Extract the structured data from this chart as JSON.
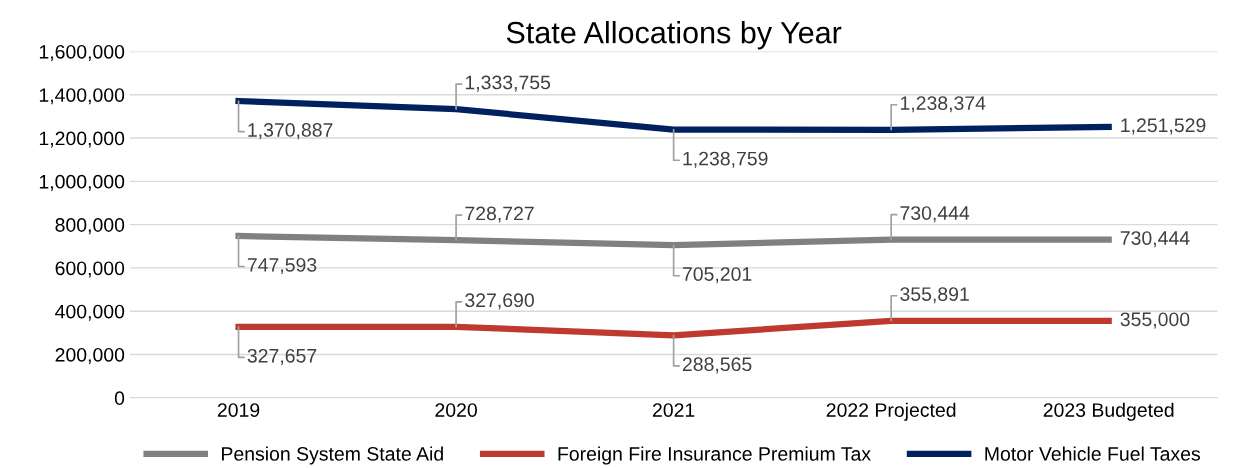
{
  "chart_data": {
    "type": "line",
    "title": "State Allocations by Year",
    "categories": [
      "2019",
      "2020",
      "2021",
      "2022 Projected",
      "2023 Budgeted"
    ],
    "series": [
      {
        "name": "Pension System State Aid",
        "color": "#808080",
        "values": [
          747593,
          728727,
          705201,
          730444,
          730444
        ],
        "value_labels": [
          "747,593",
          "728,727",
          "705,201",
          "730,444",
          "730,444"
        ]
      },
      {
        "name": "Foreign Fire Insurance Premium Tax",
        "color": "#be3a2f",
        "values": [
          327657,
          327690,
          288565,
          355891,
          355000
        ],
        "value_labels": [
          "327,657",
          "327,690",
          "288,565",
          "355,891",
          "355,000"
        ]
      },
      {
        "name": "Motor Vehicle Fuel Taxes",
        "color": "#002060",
        "values": [
          1370887,
          1333755,
          1238759,
          1238374,
          1251529
        ],
        "value_labels": [
          "1,370,887",
          "1,333,755",
          "1,238,759",
          "1,238,374",
          "1,251,529"
        ]
      }
    ],
    "ylim": [
      0,
      1600000
    ],
    "yticks": [
      0,
      {
        "value": 200000,
        "label": "200,000"
      },
      {
        "value": 400000,
        "label": "400,000"
      },
      {
        "value": 600000,
        "label": "600,000"
      },
      {
        "value": 800000,
        "label": "800,000"
      },
      {
        "value": 1000000,
        "label": "1,000,000"
      },
      {
        "value": 1200000,
        "label": "1,200,000"
      },
      {
        "value": 1400000,
        "label": "1,400,000"
      },
      {
        "value": 1600000,
        "label": "1,600,000"
      }
    ],
    "grid": "y",
    "legend": "bottom",
    "marker": "none",
    "line_style": "solid"
  }
}
